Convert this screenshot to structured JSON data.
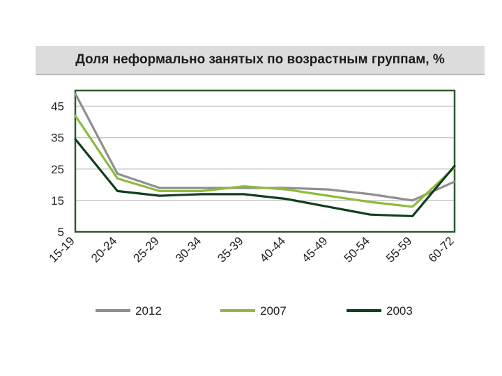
{
  "chart_data": {
    "type": "line",
    "title": "Доля неформально занятых по возрастным группам, %",
    "categories": [
      "15-19",
      "20-24",
      "25-29",
      "30-34",
      "35-39",
      "40-44",
      "45-49",
      "50-54",
      "55-59",
      "60-72"
    ],
    "ylim": [
      5,
      50
    ],
    "yticks": [
      5,
      15,
      25,
      35,
      45
    ],
    "grid": true,
    "legend_position": "bottom",
    "series": [
      {
        "name": "2012",
        "color": "#8f8f8f",
        "values": [
          49,
          23.5,
          19,
          19,
          19,
          19,
          18.5,
          17,
          15,
          21
        ]
      },
      {
        "name": "2007",
        "color": "#8dbb3d",
        "values": [
          42,
          22,
          18,
          18,
          19.5,
          18.5,
          16.5,
          14.5,
          13,
          25.5
        ]
      },
      {
        "name": "2003",
        "color": "#0f3f1c",
        "values": [
          34.5,
          18,
          16.5,
          17,
          17,
          15.5,
          13,
          10.5,
          10,
          26
        ]
      }
    ]
  }
}
